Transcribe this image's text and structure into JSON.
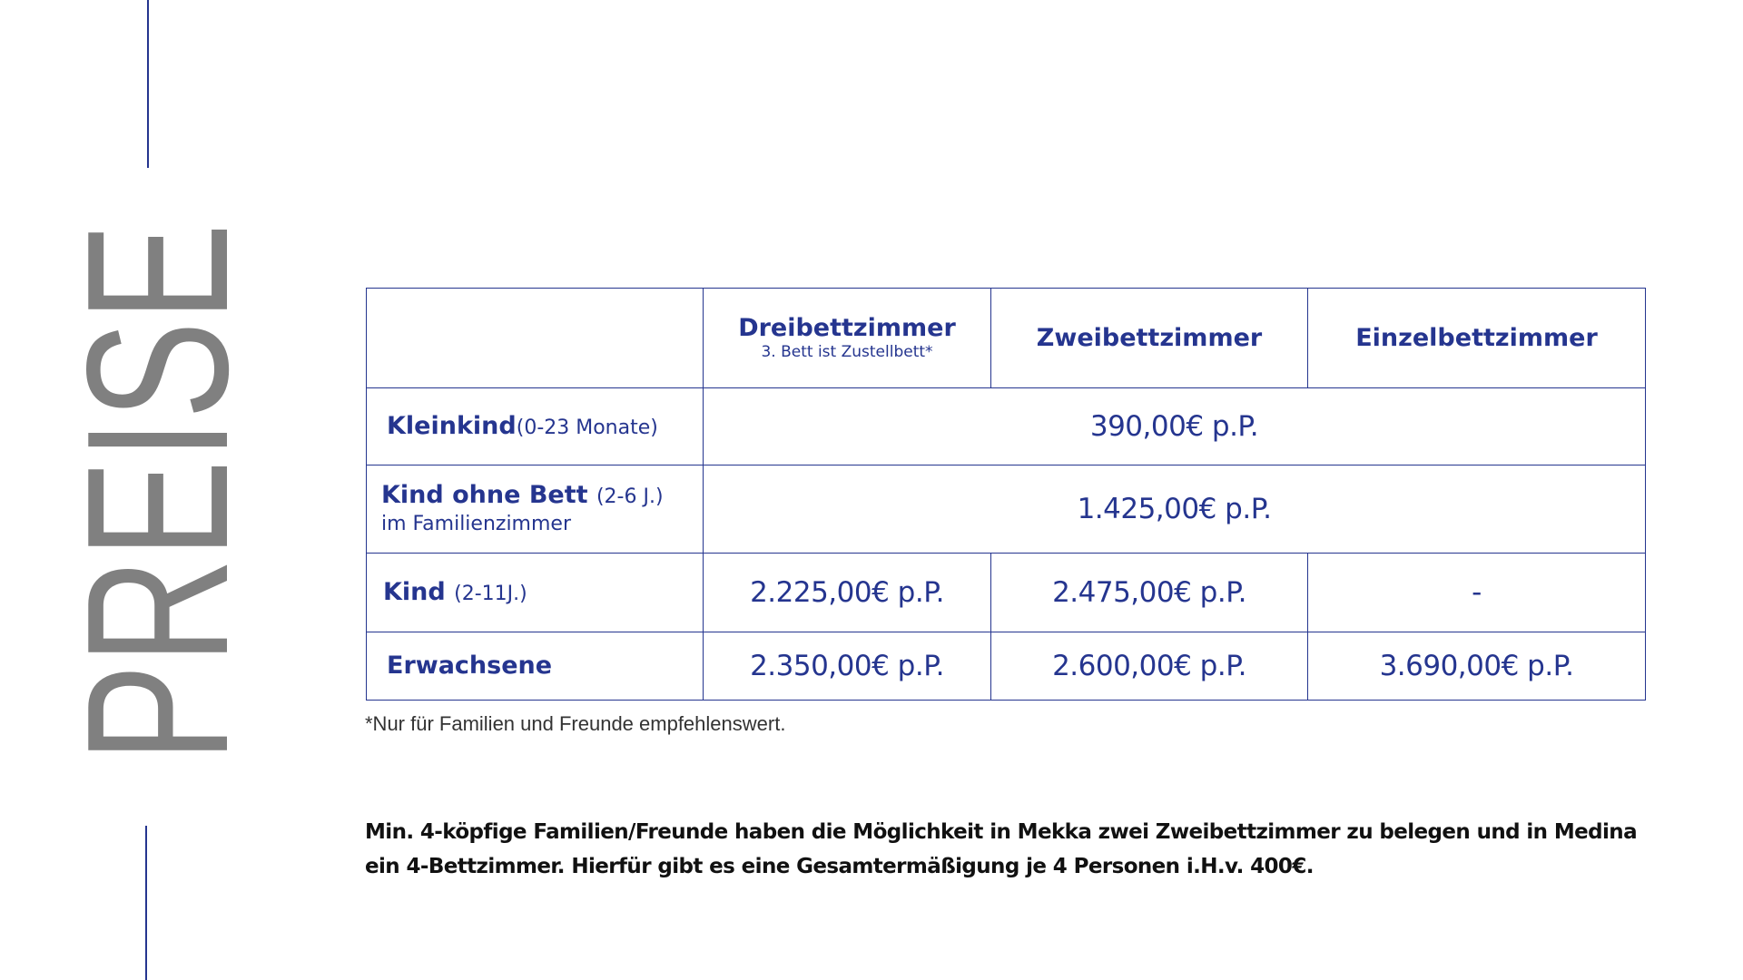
{
  "side_title": "PREISE",
  "colors": {
    "accent": "#25358f",
    "title_gray": "#808080"
  },
  "table": {
    "headers": [
      {
        "label": "",
        "sub": ""
      },
      {
        "label": "Dreibettzimmer",
        "sub": "3. Bett ist Zustellbett*"
      },
      {
        "label": "Zweibettzimmer",
        "sub": ""
      },
      {
        "label": "Einzelbettzimmer",
        "sub": ""
      }
    ],
    "rows": [
      {
        "label": "Kleinkind",
        "age": "(0-23 Monate)",
        "extra": "",
        "merged_price": "390,00€ p.P."
      },
      {
        "label": "Kind ohne Bett",
        "age": "(2-6 J.)",
        "extra": "im Familienzimmer",
        "merged_price": "1.425,00€ p.P."
      },
      {
        "label": "Kind",
        "age": "(2-11J.)",
        "extra": "",
        "prices": [
          "2.225,00€ p.P.",
          "2.475,00€ p.P.",
          "-"
        ]
      },
      {
        "label": "Erwachsene",
        "age": "",
        "extra": "",
        "prices": [
          "2.350,00€ p.P.",
          "2.600,00€ p.P.",
          "3.690,00€ p.P."
        ]
      }
    ]
  },
  "footnote": "*Nur für Familien und Freunde empfehlenswert.",
  "note": "Min. 4-köpfige Familien/Freunde haben die Möglichkeit in Mekka  zwei Zweibettzimmer zu belegen und in Medina ein 4-Bettzimmer. Hierfür gibt es eine Gesamtermäßigung je 4 Personen i.H.v. 400€."
}
